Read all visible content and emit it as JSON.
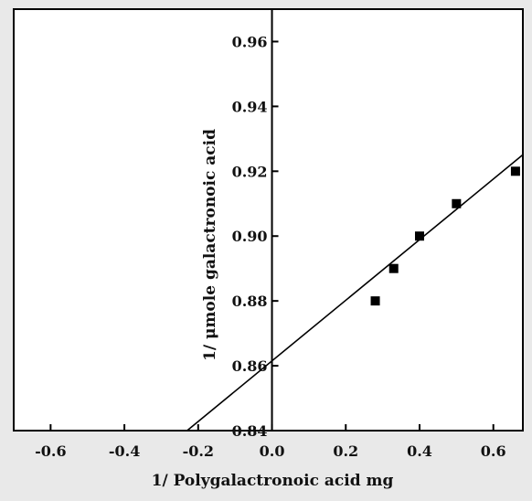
{
  "chart_data": {
    "type": "scatter",
    "title": "",
    "xlabel": "1/ Polygalactronoic acid  mg",
    "ylabel": "1/ μmole galactronoic acid",
    "xlim": [
      -0.7,
      0.68
    ],
    "ylim": [
      0.84,
      0.97
    ],
    "x_ticks": [
      -0.6,
      -0.4,
      -0.2,
      0.0,
      0.2,
      0.4,
      0.6
    ],
    "x_tick_labels": [
      "-0.6",
      "-0.4",
      "-0.2",
      "0.0",
      "0.2",
      "0.4",
      "0.6"
    ],
    "y_ticks": [
      0.84,
      0.86,
      0.88,
      0.9,
      0.92,
      0.94,
      0.96
    ],
    "y_tick_labels": [
      "0.84",
      "0.86",
      "0.88",
      "0.90",
      "0.92",
      "0.94",
      "0.96"
    ],
    "grid": false,
    "legend": "none",
    "series": [
      {
        "marker": "square",
        "color": "#000000",
        "points": [
          {
            "x": 0.28,
            "y": 0.88
          },
          {
            "x": 0.33,
            "y": 0.89
          },
          {
            "x": 0.4,
            "y": 0.9
          },
          {
            "x": 0.5,
            "y": 0.91
          },
          {
            "x": 0.66,
            "y": 0.92
          }
        ]
      }
    ],
    "fit_line": {
      "type": "linear",
      "slope": 0.0935,
      "intercept": 0.8615,
      "x_from": -0.23,
      "x_to": 0.68,
      "color": "#000000"
    }
  }
}
